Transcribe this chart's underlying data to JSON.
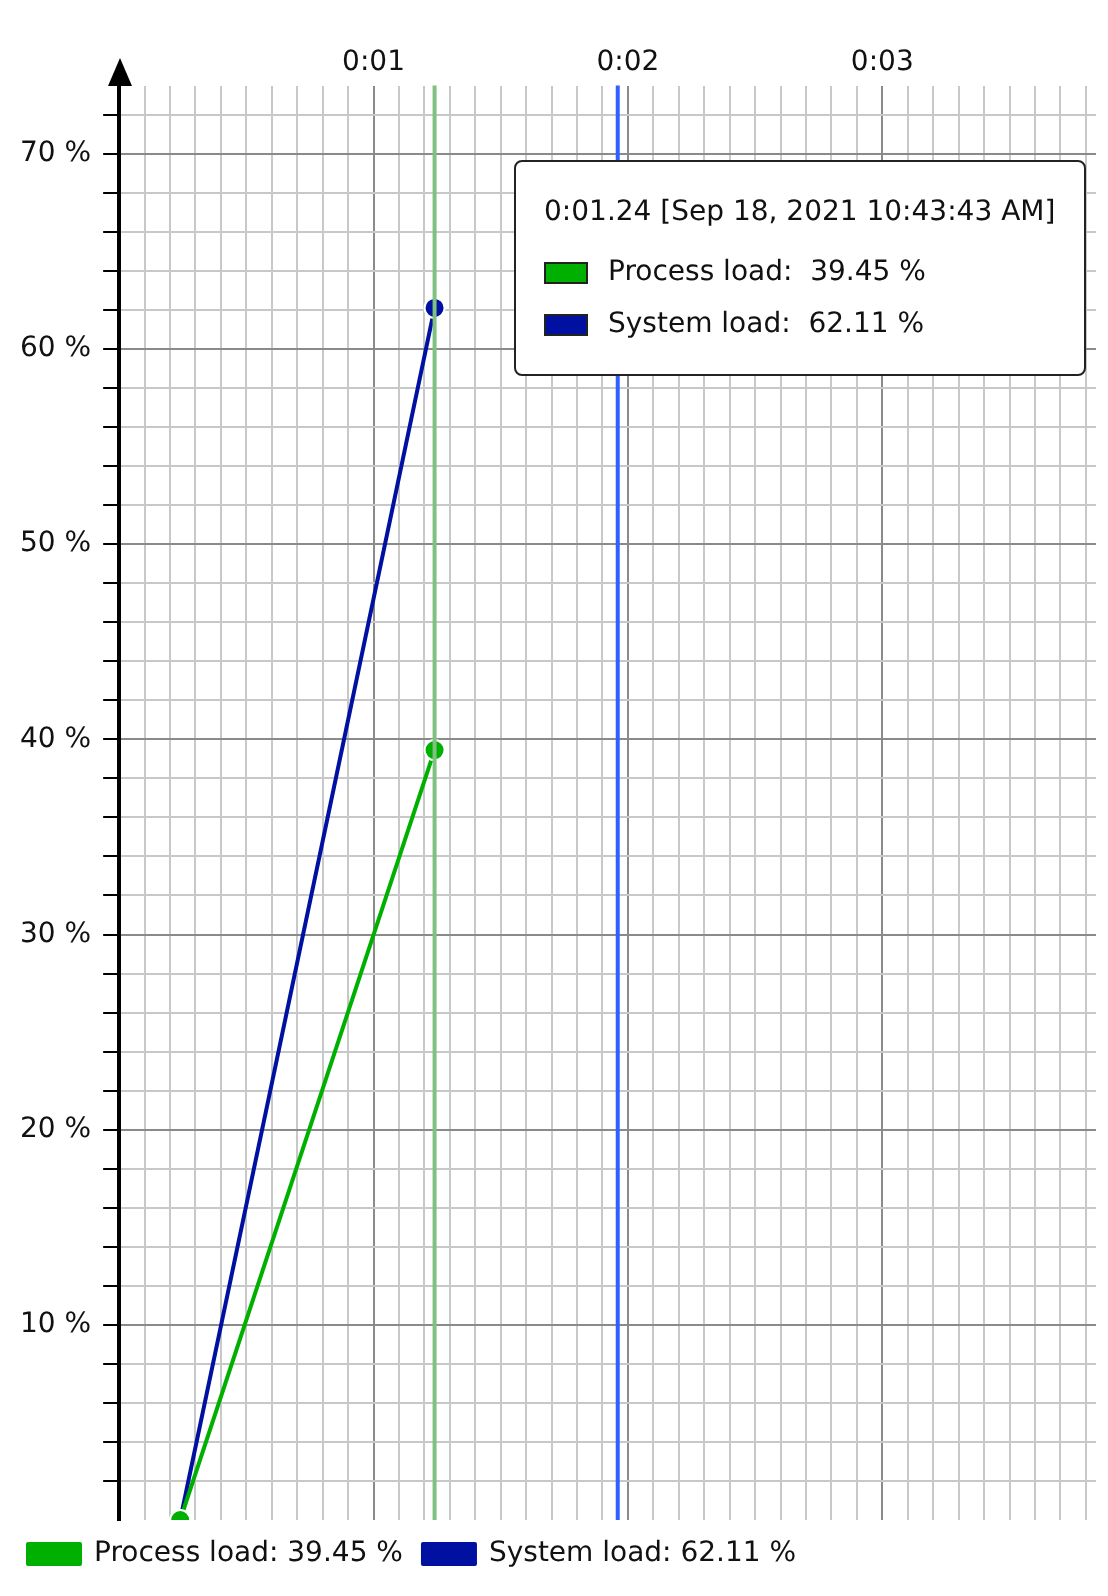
{
  "chart_data": {
    "type": "line",
    "x": [
      0.24,
      1.24
    ],
    "series": [
      {
        "name": "Process load: 39.45 %",
        "color": "#00b000",
        "values": [
          0,
          39.45
        ]
      },
      {
        "name": "System load: 62.11 %",
        "color": "#0010a0",
        "values": [
          0,
          62.11
        ]
      }
    ],
    "xlim": [
      0,
      3.84
    ],
    "xticks": [
      {
        "value": 0.1,
        "label": null
      },
      {
        "value": 0.2,
        "label": null
      },
      {
        "value": 0.3,
        "label": null
      },
      {
        "value": 0.4,
        "label": null
      },
      {
        "value": 0.5,
        "label": null
      },
      {
        "value": 0.6,
        "label": null
      },
      {
        "value": 0.7,
        "label": null
      },
      {
        "value": 0.8,
        "label": null
      },
      {
        "value": 0.9,
        "label": null
      },
      {
        "value": 1,
        "label": "0:01"
      },
      {
        "value": 1.1,
        "label": null
      },
      {
        "value": 1.2,
        "label": null
      },
      {
        "value": 1.3,
        "label": null
      },
      {
        "value": 1.4,
        "label": null
      },
      {
        "value": 1.5,
        "label": null
      },
      {
        "value": 1.6,
        "label": null
      },
      {
        "value": 1.7,
        "label": null
      },
      {
        "value": 1.8,
        "label": null
      },
      {
        "value": 1.9,
        "label": null
      },
      {
        "value": 2,
        "label": "0:02"
      },
      {
        "value": 2.1,
        "label": null
      },
      {
        "value": 2.2,
        "label": null
      },
      {
        "value": 2.3,
        "label": null
      },
      {
        "value": 2.4,
        "label": null
      },
      {
        "value": 2.5,
        "label": null
      },
      {
        "value": 2.6,
        "label": null
      },
      {
        "value": 2.7,
        "label": null
      },
      {
        "value": 2.8,
        "label": null
      },
      {
        "value": 2.9,
        "label": null
      },
      {
        "value": 3,
        "label": "0:03"
      },
      {
        "value": 3.1,
        "label": null
      },
      {
        "value": 3.2,
        "label": null
      },
      {
        "value": 3.3,
        "label": null
      },
      {
        "value": 3.4,
        "label": null
      },
      {
        "value": 3.5,
        "label": null
      },
      {
        "value": 3.6,
        "label": null
      },
      {
        "value": 3.7,
        "label": null
      },
      {
        "value": 3.8,
        "label": null
      }
    ],
    "ylim": [
      0,
      73.5
    ],
    "yticks": [
      {
        "value": 2,
        "label": null
      },
      {
        "value": 4,
        "label": null
      },
      {
        "value": 6,
        "label": null
      },
      {
        "value": 8,
        "label": null
      },
      {
        "value": 10,
        "label": "10 %"
      },
      {
        "value": 12,
        "label": null
      },
      {
        "value": 14,
        "label": null
      },
      {
        "value": 16,
        "label": null
      },
      {
        "value": 18,
        "label": null
      },
      {
        "value": 20,
        "label": "20 %"
      },
      {
        "value": 22,
        "label": null
      },
      {
        "value": 24,
        "label": null
      },
      {
        "value": 26,
        "label": null
      },
      {
        "value": 28,
        "label": null
      },
      {
        "value": 30,
        "label": "30 %"
      },
      {
        "value": 32,
        "label": null
      },
      {
        "value": 34,
        "label": null
      },
      {
        "value": 36,
        "label": null
      },
      {
        "value": 38,
        "label": null
      },
      {
        "value": 40,
        "label": "40 %"
      },
      {
        "value": 42,
        "label": null
      },
      {
        "value": 44,
        "label": null
      },
      {
        "value": 46,
        "label": null
      },
      {
        "value": 48,
        "label": null
      },
      {
        "value": 50,
        "label": "50 %"
      },
      {
        "value": 52,
        "label": null
      },
      {
        "value": 54,
        "label": null
      },
      {
        "value": 56,
        "label": null
      },
      {
        "value": 58,
        "label": null
      },
      {
        "value": 60,
        "label": "60 %"
      },
      {
        "value": 62,
        "label": null
      },
      {
        "value": 64,
        "label": null
      },
      {
        "value": 66,
        "label": null
      },
      {
        "value": 68,
        "label": null
      },
      {
        "value": 70,
        "label": "70 %"
      },
      {
        "value": 72,
        "label": null
      }
    ],
    "ref_lines": [
      {
        "axis": "x",
        "value": 1.24,
        "color": "#80c080"
      },
      {
        "axis": "x",
        "value": 1.96,
        "color": "#3060ff"
      }
    ],
    "annotations": [
      "0:01.24 [Sep 18, 2021 10:43:43 AM]",
      "Process load:  39.45 %",
      "System load:  62.11 %"
    ],
    "grid": true,
    "legend": "bottom",
    "marker": "circle",
    "line_style": "solid"
  }
}
